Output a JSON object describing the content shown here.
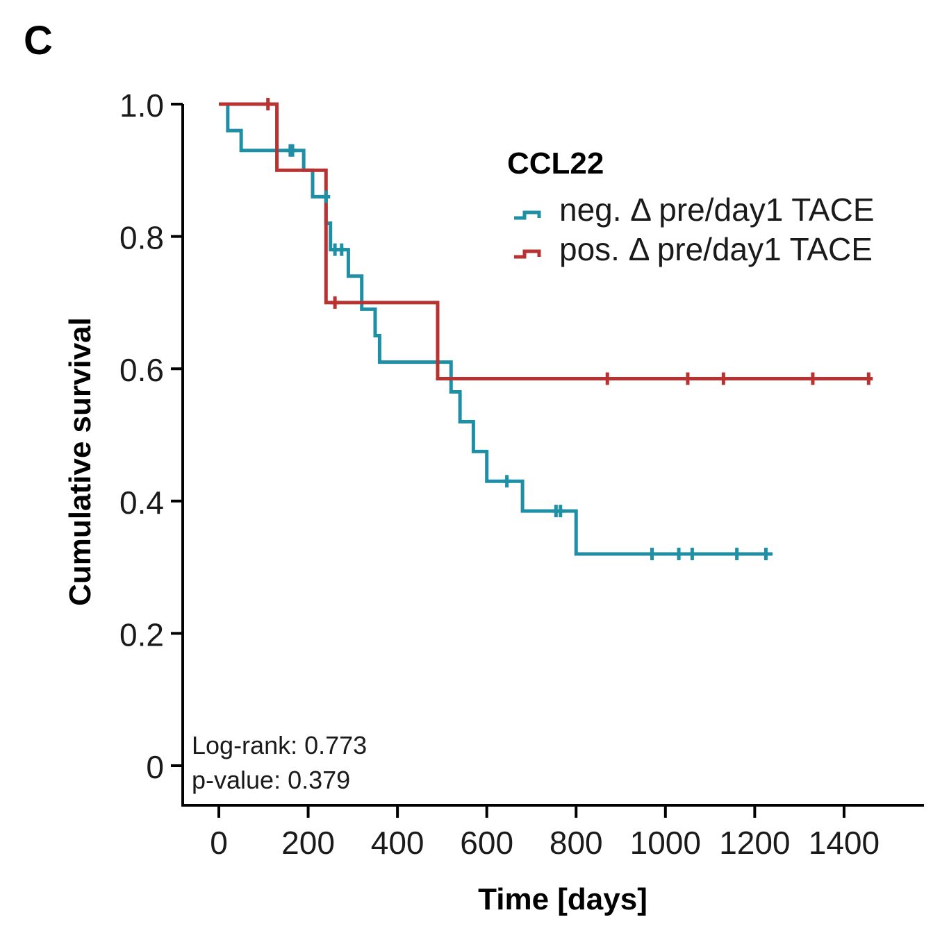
{
  "panel_label": "C",
  "chart_data": {
    "type": "line",
    "style": "step",
    "title": "",
    "xlabel": "Time [days]",
    "ylabel": "Cumulative survival",
    "xlim": [
      -10,
      1510
    ],
    "ylim": [
      -0.1,
      1.0
    ],
    "xticks": [
      0,
      200,
      400,
      600,
      800,
      1000,
      1200,
      1400
    ],
    "xtick_labels": [
      "0",
      "200",
      "400",
      "600",
      "800",
      "1000",
      "1200",
      "1400"
    ],
    "yticks": [
      0,
      0.2,
      0.4,
      0.6,
      0.8,
      1.0
    ],
    "ytick_labels": [
      "0",
      "0.2",
      "0.4",
      "0.6",
      "0.8",
      "1.0"
    ],
    "grid": false,
    "legend": {
      "title": "CCL22",
      "position": "top-right"
    },
    "series": [
      {
        "name": "neg. Δ pre/day1 TACE",
        "color": "#1f8fa6",
        "points": [
          [
            0,
            1.0
          ],
          [
            20,
            0.96
          ],
          [
            50,
            0.93
          ],
          [
            170,
            0.93
          ],
          [
            190,
            0.9
          ],
          [
            210,
            0.86
          ],
          [
            240,
            0.82
          ],
          [
            250,
            0.78
          ],
          [
            290,
            0.74
          ],
          [
            320,
            0.69
          ],
          [
            350,
            0.65
          ],
          [
            360,
            0.61
          ],
          [
            500,
            0.61
          ],
          [
            520,
            0.565
          ],
          [
            540,
            0.52
          ],
          [
            570,
            0.475
          ],
          [
            600,
            0.43
          ],
          [
            680,
            0.385
          ],
          [
            800,
            0.32
          ],
          [
            1240,
            0.32
          ]
        ],
        "censored": [
          [
            160,
            0.93
          ],
          [
            165,
            0.93
          ],
          [
            240,
            0.86
          ],
          [
            260,
            0.78
          ],
          [
            275,
            0.78
          ],
          [
            645,
            0.43
          ],
          [
            755,
            0.385
          ],
          [
            765,
            0.385
          ],
          [
            970,
            0.32
          ],
          [
            1030,
            0.32
          ],
          [
            1060,
            0.32
          ],
          [
            1160,
            0.32
          ],
          [
            1225,
            0.32
          ]
        ]
      },
      {
        "name": "pos. Δ pre/day1 TACE",
        "color": "#b83232",
        "points": [
          [
            0,
            1.0
          ],
          [
            130,
            0.9
          ],
          [
            240,
            0.7
          ],
          [
            490,
            0.585
          ],
          [
            1460,
            0.585
          ]
        ],
        "censored": [
          [
            110,
            1.0
          ],
          [
            260,
            0.7
          ],
          [
            870,
            0.585
          ],
          [
            1050,
            0.585
          ],
          [
            1130,
            0.585
          ],
          [
            1330,
            0.585
          ],
          [
            1455,
            0.585
          ]
        ]
      }
    ],
    "annotations": {
      "log_rank": "Log-rank: 0.773",
      "p_value": "p-value: 0.379"
    }
  }
}
